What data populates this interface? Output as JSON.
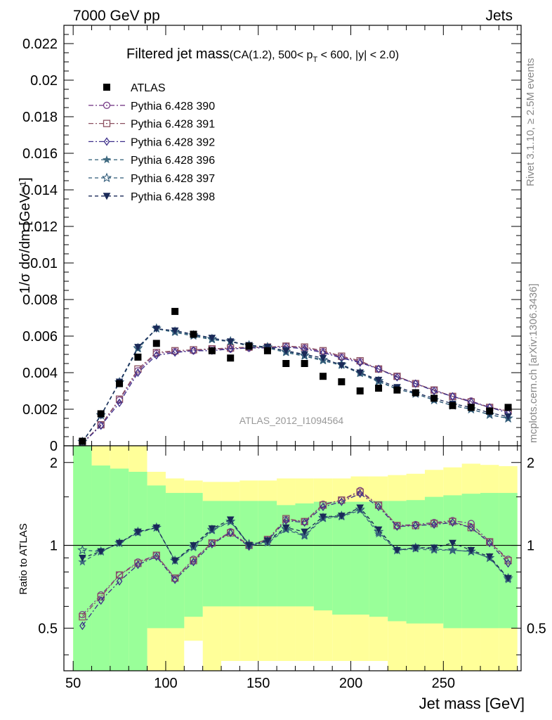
{
  "header": {
    "left_label": "7000 GeV pp",
    "right_label": "Jets"
  },
  "side_labels": {
    "rivet": "Rivet 3.1.10, ≥ 2.5M events",
    "mcplots": "mcplots.cern.ch [arXiv:1306.3436]"
  },
  "chart_data": [
    {
      "type": "scatter",
      "title_main": "Filtered jet mass",
      "title_detail_prefix": "(CA(1.2), 500< p",
      "title_detail_sub": "T",
      "title_detail_suffix": " < 600, |y| < 2.0)",
      "ylabel": "1/σ dσ/dm [GeV⁻¹]",
      "xlabel": "",
      "watermark": "ATLAS_2012_I1094564",
      "xlim": [
        45,
        292
      ],
      "ylim": [
        0,
        0.023
      ],
      "yticks": [
        0,
        0.002,
        0.004,
        0.006,
        0.008,
        0.01,
        0.012,
        0.014,
        0.016,
        0.018,
        0.02,
        0.022
      ],
      "ytick_labels": [
        "0",
        "0.002",
        "0.004",
        "0.006",
        "0.008",
        "0.01",
        "0.012",
        "0.014",
        "0.016",
        "0.018",
        "0.02",
        "0.022"
      ],
      "x": [
        55,
        65,
        75,
        85,
        95,
        105,
        115,
        125,
        135,
        145,
        155,
        165,
        175,
        185,
        195,
        205,
        215,
        225,
        235,
        245,
        255,
        265,
        275,
        285
      ],
      "data": {
        "name": "ATLAS",
        "values": [
          0.00025,
          0.00175,
          0.0034,
          0.00485,
          0.0056,
          0.00735,
          0.0061,
          0.0052,
          0.0048,
          0.00545,
          0.0052,
          0.0045,
          0.0045,
          0.0038,
          0.0035,
          0.003,
          0.00315,
          0.00305,
          0.0029,
          0.0026,
          0.0022,
          0.0021,
          0.0019,
          0.0021
        ]
      },
      "series": [
        {
          "name": "Pythia 6.428 390",
          "color": "#7a3f8a",
          "marker": "circle-open",
          "values": [
            0.00015,
            0.00115,
            0.0025,
            0.0041,
            0.00505,
            0.00515,
            0.0052,
            0.0053,
            0.0053,
            0.00535,
            0.0054,
            0.00545,
            0.00535,
            0.00515,
            0.00485,
            0.0046,
            0.0042,
            0.0038,
            0.0034,
            0.00305,
            0.0027,
            0.00245,
            0.0021,
            0.0019
          ]
        },
        {
          "name": "Pythia 6.428 391",
          "color": "#8b5060",
          "marker": "square-open",
          "values": [
            0.00015,
            0.00115,
            0.00255,
            0.0042,
            0.0051,
            0.0052,
            0.00525,
            0.0053,
            0.00535,
            0.0054,
            0.0054,
            0.00545,
            0.0054,
            0.0052,
            0.0049,
            0.00465,
            0.0042,
            0.0038,
            0.0034,
            0.00305,
            0.0027,
            0.0024,
            0.0021,
            0.0019
          ]
        },
        {
          "name": "Pythia 6.428 392",
          "color": "#3d2f8a",
          "marker": "diamond-open",
          "values": [
            0.00013,
            0.0011,
            0.00235,
            0.004,
            0.00495,
            0.0051,
            0.0052,
            0.0052,
            0.0053,
            0.00535,
            0.00535,
            0.0054,
            0.0053,
            0.0051,
            0.0048,
            0.00455,
            0.0042,
            0.00375,
            0.0034,
            0.003,
            0.0027,
            0.0024,
            0.0021,
            0.0018
          ]
        },
        {
          "name": "Pythia 6.428 396",
          "color": "#3f6a80",
          "marker": "star-filled",
          "values": [
            0.0002,
            0.00165,
            0.00345,
            0.0053,
            0.0064,
            0.0062,
            0.006,
            0.0058,
            0.0057,
            0.00545,
            0.00535,
            0.0051,
            0.0049,
            0.00465,
            0.0044,
            0.00395,
            0.0035,
            0.0031,
            0.00285,
            0.0025,
            0.0022,
            0.002,
            0.0017,
            0.0015
          ]
        },
        {
          "name": "Pythia 6.428 397",
          "color": "#2f5a78",
          "marker": "star-open",
          "values": [
            0.00022,
            0.00168,
            0.00348,
            0.00535,
            0.00642,
            0.00625,
            0.00605,
            0.00585,
            0.00572,
            0.0055,
            0.0054,
            0.00515,
            0.00495,
            0.0047,
            0.00445,
            0.004,
            0.00355,
            0.0031,
            0.00285,
            0.0025,
            0.0022,
            0.002,
            0.0017,
            0.0015
          ]
        },
        {
          "name": "Pythia 6.428 398",
          "color": "#1a2a58",
          "marker": "triangle-down",
          "values": [
            0.00021,
            0.00165,
            0.0035,
            0.0054,
            0.0064,
            0.0063,
            0.0061,
            0.0059,
            0.0057,
            0.0055,
            0.0054,
            0.0052,
            0.005,
            0.0048,
            0.0044,
            0.004,
            0.0036,
            0.0032,
            0.0029,
            0.0026,
            0.0023,
            0.0021,
            0.0018,
            0.0016
          ]
        }
      ]
    },
    {
      "type": "scatter",
      "ylabel": "Ratio to ATLAS",
      "xlabel": "Jet mass [GeV]",
      "xlim": [
        45,
        292
      ],
      "ylim": [
        0.35,
        2.3
      ],
      "yticks": [
        0.5,
        1,
        2
      ],
      "ytick_labels": [
        "0.5",
        "1",
        "2"
      ],
      "xticks": [
        50,
        100,
        150,
        200,
        250
      ],
      "xtick_labels": [
        "50",
        "100",
        "150",
        "200",
        "250"
      ],
      "band_edges": [
        50,
        60,
        70,
        80,
        90,
        100,
        110,
        120,
        130,
        140,
        150,
        160,
        170,
        180,
        190,
        200,
        210,
        220,
        230,
        240,
        250,
        260,
        270,
        280,
        290
      ],
      "band_inner": {
        "color": "#99ff99",
        "low": [
          0.35,
          0.35,
          0.35,
          0.35,
          0.5,
          0.5,
          0.55,
          0.6,
          0.6,
          0.6,
          0.6,
          0.6,
          0.6,
          0.58,
          0.56,
          0.56,
          0.55,
          0.53,
          0.52,
          0.52,
          0.5,
          0.5,
          0.5,
          0.5
        ],
        "high": [
          2.3,
          1.95,
          1.9,
          1.85,
          1.65,
          1.55,
          1.55,
          1.45,
          1.45,
          1.45,
          1.45,
          1.4,
          1.42,
          1.44,
          1.44,
          1.44,
          1.45,
          1.45,
          1.46,
          1.5,
          1.52,
          1.54,
          1.55,
          1.55
        ]
      },
      "band_outer": {
        "color": "#ffff99",
        "low": [
          0.35,
          0.35,
          0.35,
          0.35,
          0.35,
          0.35,
          0.35,
          0.35,
          0.38,
          0.38,
          0.38,
          0.38,
          0.38,
          0.38,
          0.38,
          0.38,
          0.38,
          0.35,
          0.35,
          0.35,
          0.35,
          0.35,
          0.35,
          0.35
        ],
        "high": [
          2.3,
          2.3,
          2.3,
          2.3,
          1.85,
          1.75,
          1.72,
          1.7,
          1.7,
          1.72,
          1.72,
          1.75,
          1.75,
          1.75,
          1.75,
          1.78,
          1.78,
          1.8,
          1.82,
          1.88,
          1.92,
          1.98,
          1.96,
          1.94
        ]
      },
      "band_notch": {
        "color": "#ffffff",
        "x_range": [
          110,
          120
        ],
        "y_range": [
          0.35,
          0.45
        ],
        "top_x_range": [
          90,
          110
        ],
        "top_y_range": [
          1.85,
          2.3
        ]
      },
      "x": [
        55,
        65,
        75,
        85,
        95,
        105,
        115,
        125,
        135,
        145,
        155,
        165,
        175,
        185,
        195,
        205,
        215,
        225,
        235,
        245,
        255,
        265,
        275,
        285
      ],
      "reference_line": 1,
      "series": [
        {
          "name": "Pythia 6.428 390",
          "values": [
            0.56,
            0.66,
            0.78,
            0.87,
            0.92,
            0.76,
            0.89,
            1.02,
            1.12,
            1.0,
            1.05,
            1.24,
            1.22,
            1.41,
            1.46,
            1.58,
            1.4,
            1.18,
            1.19,
            1.21,
            1.23,
            1.2,
            1.03,
            0.89
          ]
        },
        {
          "name": "Pythia 6.428 391",
          "values": [
            0.55,
            0.65,
            0.78,
            0.86,
            0.92,
            0.76,
            0.88,
            1.02,
            1.11,
            1.0,
            1.05,
            1.25,
            1.22,
            1.4,
            1.46,
            1.56,
            1.4,
            1.18,
            1.18,
            1.2,
            1.22,
            1.16,
            1.03,
            0.88
          ]
        },
        {
          "name": "Pythia 6.428 392",
          "values": [
            0.51,
            0.63,
            0.74,
            0.85,
            0.91,
            0.75,
            0.87,
            1.01,
            1.11,
            0.99,
            1.04,
            1.23,
            1.21,
            1.38,
            1.44,
            1.54,
            1.38,
            1.17,
            1.18,
            1.19,
            1.21,
            1.16,
            1.02,
            0.86
          ]
        },
        {
          "name": "Pythia 6.428 396",
          "values": [
            0.87,
            0.95,
            1.02,
            1.11,
            1.16,
            0.88,
            0.98,
            1.13,
            1.22,
            1.0,
            1.02,
            1.14,
            1.08,
            1.25,
            1.27,
            1.34,
            1.1,
            0.96,
            0.97,
            0.96,
            0.96,
            0.95,
            0.9,
            0.75
          ]
        },
        {
          "name": "Pythia 6.428 397",
          "values": [
            0.96,
            0.95,
            1.02,
            1.12,
            1.16,
            0.88,
            0.99,
            1.14,
            1.22,
            1.01,
            1.03,
            1.15,
            1.09,
            1.26,
            1.28,
            1.35,
            1.12,
            0.96,
            0.98,
            0.97,
            0.96,
            0.95,
            0.9,
            0.76
          ]
        },
        {
          "name": "Pythia 6.428 398",
          "values": [
            0.9,
            0.95,
            1.02,
            1.12,
            1.16,
            0.88,
            1.0,
            1.15,
            1.24,
            1.0,
            1.04,
            1.16,
            1.12,
            1.27,
            1.28,
            1.37,
            1.14,
            0.96,
            0.98,
            0.98,
            1.02,
            0.96,
            0.91,
            0.76
          ]
        }
      ]
    }
  ]
}
